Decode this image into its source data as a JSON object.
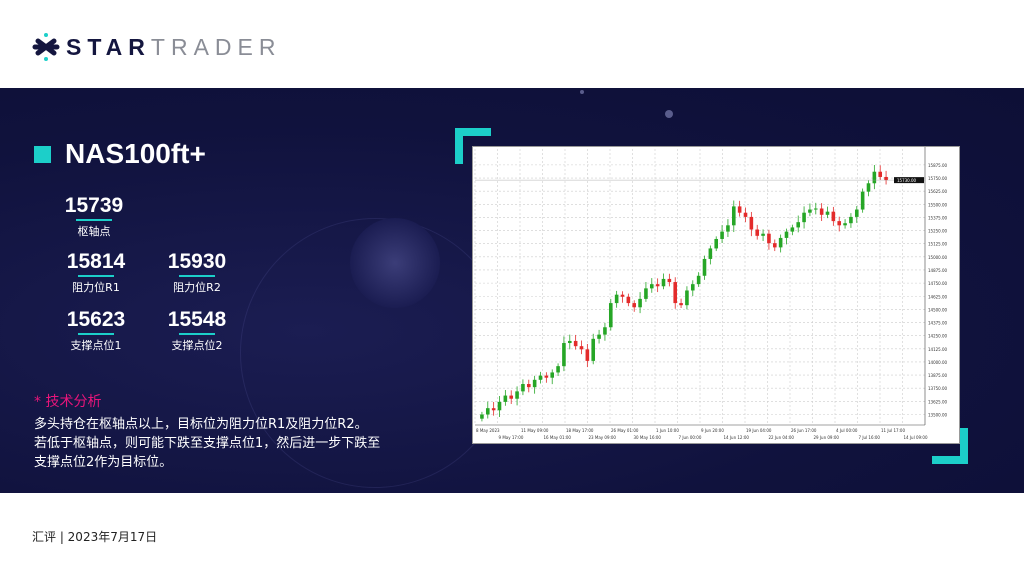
{
  "brand": {
    "part1": "STAR",
    "part2": "TRADER"
  },
  "instrument": "NAS100ft+",
  "levels": {
    "pivot": {
      "value": "15739",
      "label": "枢轴点"
    },
    "r1": {
      "value": "15814",
      "label": "阻力位R1"
    },
    "r2": {
      "value": "15930",
      "label": "阻力位R2"
    },
    "s1": {
      "value": "15623",
      "label": "支撑点位1"
    },
    "s2": {
      "value": "15548",
      "label": "支撑点位2"
    }
  },
  "analysis": {
    "heading": "* 技术分析",
    "lines": [
      "多头持仓在枢轴点以上，目标位为阻力位R1及阻力位R2。",
      "若低于枢轴点，则可能下跌至支撑点位1，然后进一步下跌至",
      "支撑点位2作为目标位。"
    ]
  },
  "footer": "汇评 | 2023年7月17日",
  "colors": {
    "accent": "#1ccfc9",
    "highlight": "#e8157a",
    "background": "#10123d",
    "up": "#26a626",
    "down": "#e32b2b"
  },
  "chart_data": {
    "type": "candlestick",
    "title": "",
    "grid": true,
    "ylim": [
      13400,
      15950
    ],
    "y_ticks": [
      13500,
      13625,
      13750,
      13875,
      14000,
      14125,
      14250,
      14375,
      14500,
      14625,
      14750,
      14875,
      15000,
      15125,
      15250,
      15375,
      15500,
      15625,
      15750,
      15875
    ],
    "x_ticks": [
      "8 May 2023",
      "9 May 17:00",
      "11 May 09:00",
      "16 May 01:00",
      "18 May 17:00",
      "23 May 09:00",
      "26 May 01:00",
      "30 May 16:00",
      "1 Jun 10:00",
      "7 Jun 00:00",
      "9 Jun 20:00",
      "14 Jun 12:00",
      "19 Jun 04:00",
      "22 Jun 04:00",
      "26 Jun 17:00",
      "29 Jun 09:00",
      "4 Jul 00:00",
      "7 Jul 16:00",
      "11 Jul 17:00",
      "14 Jul 09:00"
    ],
    "closes": [
      13500,
      13560,
      13540,
      13620,
      13680,
      13650,
      13720,
      13790,
      13760,
      13830,
      13870,
      13850,
      13900,
      13960,
      14180,
      14200,
      14150,
      14120,
      14010,
      14220,
      14260,
      14330,
      14560,
      14640,
      14620,
      14560,
      14520,
      14600,
      14700,
      14740,
      14720,
      14790,
      14760,
      14560,
      14540,
      14680,
      14740,
      14820,
      14980,
      15080,
      15170,
      15240,
      15300,
      15480,
      15420,
      15380,
      15260,
      15200,
      15220,
      15130,
      15090,
      15180,
      15240,
      15280,
      15330,
      15420,
      15450,
      15460,
      15400,
      15430,
      15340,
      15300,
      15320,
      15380,
      15450,
      15620,
      15700,
      15810,
      15760,
      15730
    ]
  }
}
